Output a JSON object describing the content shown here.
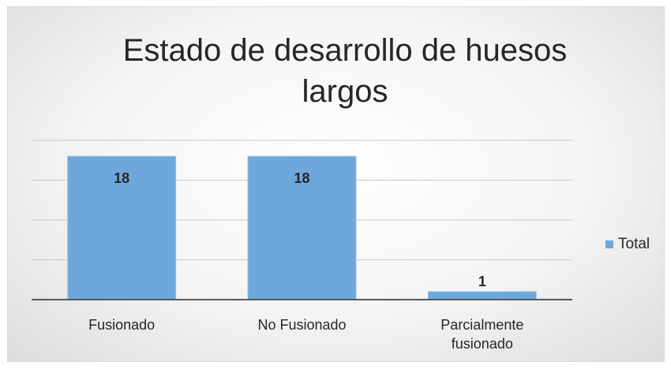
{
  "chart_data": {
    "type": "bar",
    "title": "Estado de desarrollo de huesos largos",
    "categories": [
      "Fusionado",
      "No Fusionado",
      "Parcialmente fusionado"
    ],
    "series": [
      {
        "name": "Total",
        "color": "#6fa6dc",
        "values": [
          18,
          18,
          1
        ]
      }
    ],
    "ylim": [
      0,
      20
    ],
    "yticks": [
      0,
      5,
      10,
      15,
      20
    ],
    "grid": true,
    "legend": "right"
  }
}
